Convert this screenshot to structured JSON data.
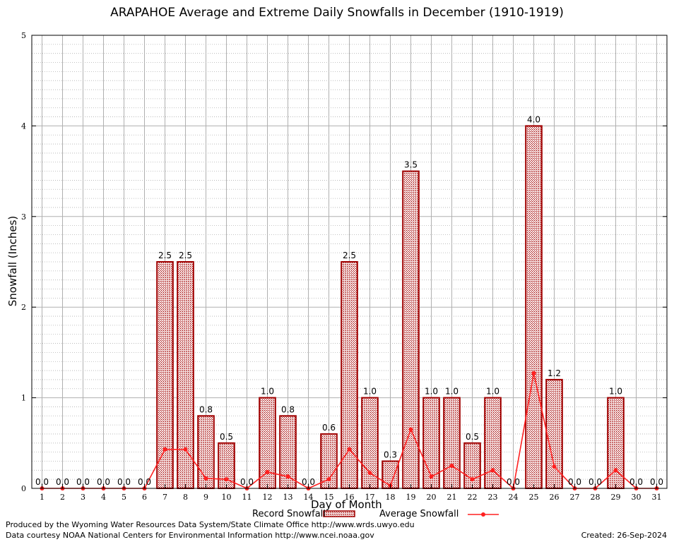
{
  "chart_data": {
    "type": "bar",
    "title": "ARAPAHOE Average and Extreme Daily Snowfalls in December (1910-1919)",
    "xlabel": "Day of Month",
    "ylabel": "Snowfall (Inches)",
    "ylim": [
      0,
      5
    ],
    "yticks": [
      "0",
      "1",
      "2",
      "3",
      "4",
      "5"
    ],
    "categories": [
      "1",
      "2",
      "3",
      "4",
      "5",
      "6",
      "7",
      "8",
      "9",
      "10",
      "11",
      "12",
      "13",
      "14",
      "15",
      "16",
      "17",
      "18",
      "19",
      "20",
      "21",
      "22",
      "23",
      "24",
      "25",
      "26",
      "27",
      "28",
      "29",
      "30",
      "31"
    ],
    "series": [
      {
        "name": "Record Snowfall",
        "type": "bar",
        "values": [
          0.0,
          0.0,
          0.0,
          0.0,
          0.0,
          0.0,
          2.5,
          2.5,
          0.8,
          0.5,
          0.0,
          1.0,
          0.8,
          0.0,
          0.6,
          2.5,
          1.0,
          0.3,
          3.5,
          1.0,
          1.0,
          0.5,
          1.0,
          0.0,
          4.0,
          1.2,
          0.0,
          0.0,
          1.0,
          0.0,
          0.0
        ],
        "labels": [
          "0.0",
          "0.0",
          "0.0",
          "0.0",
          "0.0",
          "0.0",
          "2.5",
          "2.5",
          "0.8",
          "0.5",
          "0.0",
          "1.0",
          "0.8",
          "0.0",
          "0.6",
          "2.5",
          "1.0",
          "0.3",
          "3.5",
          "1.0",
          "1.0",
          "0.5",
          "1.0",
          "0.0",
          "4.0",
          "1.2",
          "0.0",
          "0.0",
          "1.0",
          "0.0",
          "0.0"
        ]
      },
      {
        "name": "Average Snowfall",
        "type": "line",
        "values": [
          0.0,
          0.0,
          0.0,
          0.0,
          0.0,
          0.0,
          0.43,
          0.43,
          0.11,
          0.1,
          0.0,
          0.18,
          0.13,
          0.0,
          0.1,
          0.43,
          0.17,
          0.03,
          0.65,
          0.13,
          0.25,
          0.1,
          0.2,
          0.0,
          1.27,
          0.24,
          0.0,
          0.0,
          0.2,
          0.0,
          0.0
        ]
      }
    ],
    "grid": true,
    "legend": "bottom-center",
    "colors": {
      "bar_stroke": "#a00000",
      "bar_fill": "#e8c8c8",
      "line": "#ff2020",
      "grid": "#b0b0b0"
    }
  },
  "footer": {
    "line1": "Produced by the Wyoming Water Resources Data System/State Climate Office http://www.wrds.uwyo.edu",
    "line2": "Data courtesy NOAA National Centers for Environmental Information http://www.ncei.noaa.gov",
    "created": "Created: 26-Sep-2024"
  }
}
